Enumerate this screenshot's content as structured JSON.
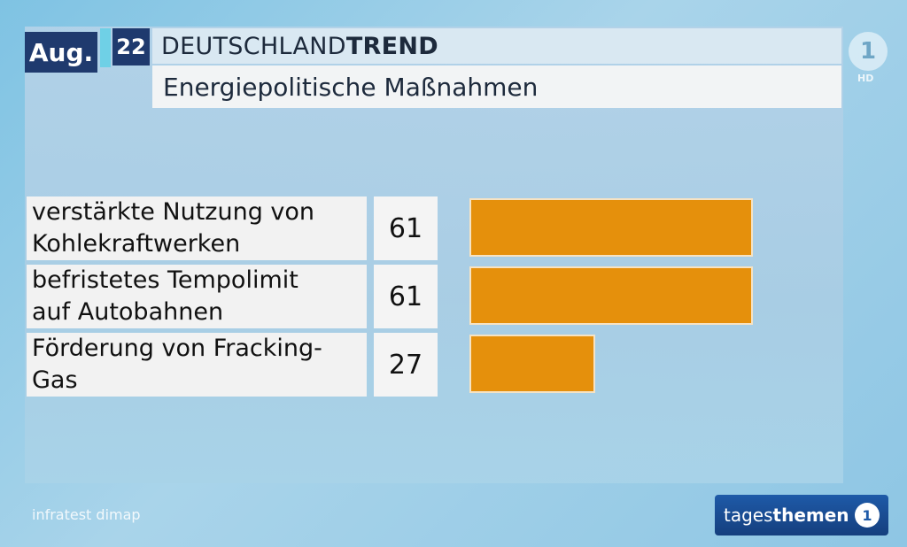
{
  "header": {
    "month": "Aug.",
    "year": "22",
    "title_light": "DEUTSCHLAND",
    "title_bold": "TREND",
    "subtitle": "Energiepolitische Maßnahmen"
  },
  "channel": {
    "logo": "1",
    "hd": "HD"
  },
  "chart_data": {
    "type": "bar",
    "orientation": "horizontal",
    "title": "Energiepolitische Maßnahmen",
    "categories": [
      "verstärkte Nutzung von Kohlekraftwerken",
      "befristetes Tempolimit auf Autobahnen",
      "Förderung von Fracking-Gas"
    ],
    "category_lines": [
      [
        "verstärkte Nutzung von",
        "Kohlekraftwerken"
      ],
      [
        "befristetes Tempolimit",
        "auf Autobahnen"
      ],
      [
        "Förderung von Fracking-",
        "Gas"
      ]
    ],
    "values": [
      61,
      61,
      27
    ],
    "value_labels": [
      "61",
      "61",
      "27"
    ],
    "xlim": [
      0,
      80
    ],
    "bar_color": "#e5900c",
    "grid": false,
    "legend": "none"
  },
  "footer": {
    "source": "infratest dimap",
    "brand_light": "tages",
    "brand_bold": "themen",
    "brand_icon": "1"
  }
}
